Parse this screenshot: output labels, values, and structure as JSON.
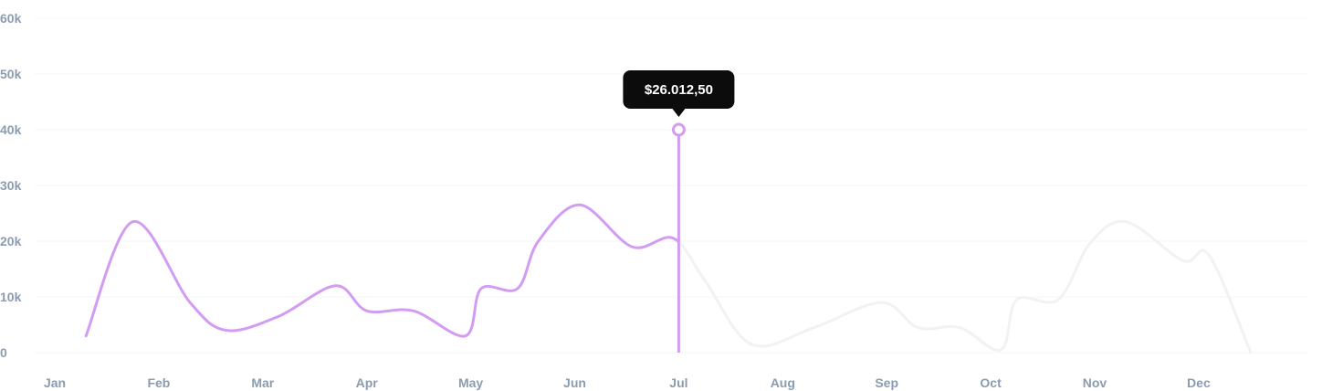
{
  "chart_data": {
    "type": "line",
    "ylim": [
      0,
      60000
    ],
    "y_ticks": [
      {
        "value": 0,
        "label": "0"
      },
      {
        "value": 10000,
        "label": "10k"
      },
      {
        "value": 20000,
        "label": "20k"
      },
      {
        "value": 30000,
        "label": "30k"
      },
      {
        "value": 40000,
        "label": "40k"
      },
      {
        "value": 50000,
        "label": "50k"
      },
      {
        "value": 60000,
        "label": "60k"
      }
    ],
    "x_ticks": [
      "Jan",
      "Feb",
      "Mar",
      "Apr",
      "May",
      "Jun",
      "Jul",
      "Aug",
      "Sep",
      "Oct",
      "Nov",
      "Dec"
    ],
    "series": [
      {
        "values": [
          {
            "x": 0.3,
            "y": 3000
          },
          {
            "x": 0.75,
            "y": 23500
          },
          {
            "x": 1.3,
            "y": 9000
          },
          {
            "x": 1.65,
            "y": 4000
          },
          {
            "x": 2.15,
            "y": 6500
          },
          {
            "x": 2.7,
            "y": 12000
          },
          {
            "x": 3.0,
            "y": 7500
          },
          {
            "x": 3.45,
            "y": 7500
          },
          {
            "x": 3.95,
            "y": 3000
          },
          {
            "x": 4.1,
            "y": 11500
          },
          {
            "x": 4.45,
            "y": 11500
          },
          {
            "x": 4.65,
            "y": 20000
          },
          {
            "x": 5.05,
            "y": 26500
          },
          {
            "x": 5.55,
            "y": 19000
          },
          {
            "x": 5.95,
            "y": 20500
          },
          {
            "x": 6.25,
            "y": 13000
          },
          {
            "x": 6.7,
            "y": 1500
          },
          {
            "x": 7.3,
            "y": 4500
          },
          {
            "x": 7.95,
            "y": 9000
          },
          {
            "x": 8.3,
            "y": 4500
          },
          {
            "x": 8.7,
            "y": 4500
          },
          {
            "x": 9.1,
            "y": 500
          },
          {
            "x": 9.25,
            "y": 9500
          },
          {
            "x": 9.65,
            "y": 9500
          },
          {
            "x": 9.95,
            "y": 19500
          },
          {
            "x": 10.3,
            "y": 23500
          },
          {
            "x": 10.85,
            "y": 16500
          },
          {
            "x": 11.1,
            "y": 17500
          },
          {
            "x": 11.5,
            "y": 0
          }
        ]
      }
    ],
    "cursor": {
      "x": 6.0,
      "y": 40000
    },
    "colors": {
      "line_active": "#d29cf2",
      "line_inactive": "#f1f2f4",
      "grid": "#f3f4f6",
      "axis_text": "#8a9cb0",
      "tooltip_bg": "#0c0c0c",
      "tooltip_text": "#ffffff",
      "marker_fill": "#ffffff"
    },
    "tooltip": {
      "label": "$26.012,50"
    },
    "grid": true
  }
}
